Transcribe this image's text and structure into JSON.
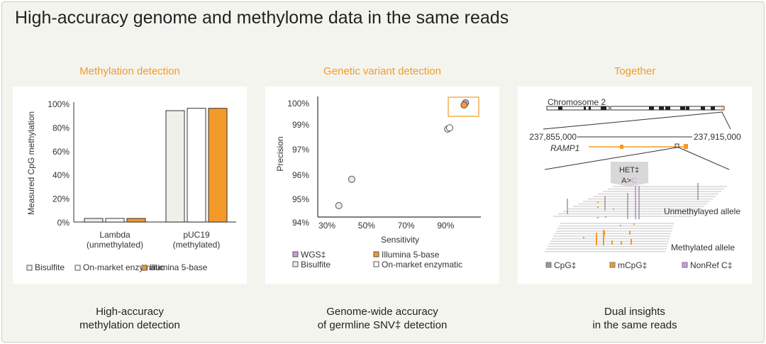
{
  "title": "High-accuracy genome and methylome data in the same reads",
  "colors": {
    "orange": "#f39a28",
    "bisulfite": "#f0f0ea",
    "enzymatic": "#ffffff",
    "wgs": "#c99be8",
    "cpg": "#999999"
  },
  "sections": [
    {
      "title": "Methylation detection",
      "caption1": "High-accuracy",
      "caption2": "methylation detection"
    },
    {
      "title": "Genetic variant detection",
      "caption1": "Genome-wide accuracy",
      "caption2": "of germline SNV‡ detection"
    },
    {
      "title": "Together",
      "caption1": "Dual insights",
      "caption2": "in the same reads"
    }
  ],
  "chart_data": [
    {
      "type": "bar",
      "ylabel": "Measured CpG methylation",
      "ylim": [
        0,
        100
      ],
      "yticks": [
        "0%",
        "20%",
        "40%",
        "60%",
        "80%",
        "100%"
      ],
      "categories": [
        {
          "l1": "Lambda",
          "l2": "(unmethylated)"
        },
        {
          "l1": "pUC19",
          "l2": "(methylated)"
        }
      ],
      "series": [
        {
          "name": "Bisulfite",
          "values": [
            3,
            94
          ]
        },
        {
          "name": "On-market enzymatic",
          "values": [
            3,
            96
          ]
        },
        {
          "name": "Illumina 5-base",
          "values": [
            3,
            96
          ]
        }
      ]
    },
    {
      "type": "scatter",
      "xlabel": "Sensitivity",
      "ylabel": "Precision",
      "xticks": [
        {
          "v": 30,
          "l": "30%"
        },
        {
          "v": 50,
          "l": "50%"
        },
        {
          "v": 70,
          "l": "70%"
        },
        {
          "v": 90,
          "l": "90%"
        }
      ],
      "yticks": [
        {
          "v": 94,
          "l": "94%"
        },
        {
          "v": 95,
          "l": "95%"
        },
        {
          "v": 96,
          "l": "96%"
        },
        {
          "v": 97,
          "l": "97%"
        },
        {
          "v": 99,
          "l": "99%"
        },
        {
          "v": 100,
          "l": "100%"
        }
      ],
      "series": [
        {
          "name": "WGS‡",
          "points": [
            [
              100,
              100
            ]
          ]
        },
        {
          "name": "Illumina 5-base",
          "points": [
            [
              99.3,
              99.9
            ]
          ]
        },
        {
          "name": "Bisulfite",
          "points": [
            [
              36,
              94.7
            ],
            [
              42.5,
              95.8
            ],
            [
              91,
              98.6
            ]
          ]
        },
        {
          "name": "On-market enzymatic",
          "points": [
            [
              92,
              98.7
            ]
          ]
        }
      ]
    }
  ],
  "genome": {
    "chromosome": "Chromosome 2",
    "start": "237,855,000",
    "end": "237,915,000",
    "gene": "RAMP1",
    "het": "HET‡",
    "variant_ref": "A>",
    "variant_alt": "C",
    "unmeth": "Unmethylayed allele",
    "meth": "Methylated allele",
    "legend": [
      "CpG‡",
      "mCpG‡",
      "NonRef C‡"
    ]
  }
}
